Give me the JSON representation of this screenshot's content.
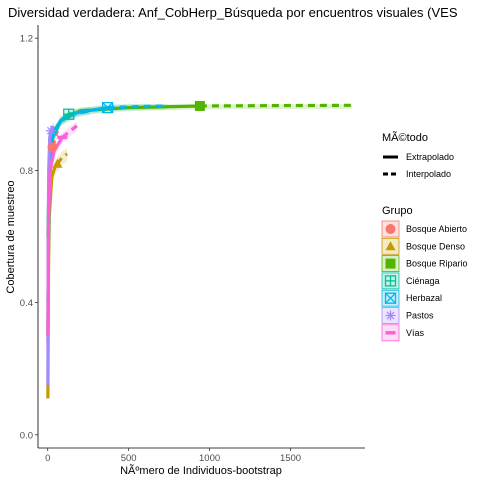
{
  "chart_data": {
    "type": "line",
    "title": "Diversidad verdadera: Anf_CobHerp_Búsqueda por encuentros visuales (VES",
    "xlabel": "NÃºmero de Individuos-bootstrap",
    "ylabel": "Cobertura de muestreo",
    "xlim": [
      -60,
      1960
    ],
    "ylim": [
      -0.04,
      1.24
    ],
    "x_ticks": [
      0,
      500,
      1000,
      1500
    ],
    "y_ticks": [
      0.0,
      0.4,
      0.8,
      1.2
    ],
    "y_tick_labels": [
      "0.0",
      "0.4",
      "0.8",
      "1.2"
    ],
    "grid": false,
    "legend_position": "right",
    "method_legend": {
      "title": "MÃ©todo",
      "items": [
        {
          "label": "Extrapolado",
          "style": "solid"
        },
        {
          "label": "Interpolado",
          "style": "dashed"
        }
      ]
    },
    "group_legend": {
      "title": "Grupo",
      "items": [
        {
          "label": "Bosque Abierto",
          "color": "#F8766D",
          "shape": "circle"
        },
        {
          "label": "Bosque Denso",
          "color": "#C49A00",
          "shape": "triangle"
        },
        {
          "label": "Bosque Ripario",
          "color": "#53B400",
          "shape": "square"
        },
        {
          "label": "Ciénaga",
          "color": "#00C094",
          "shape": "cross-square"
        },
        {
          "label": "Herbazal",
          "color": "#00B6EB",
          "shape": "x-square"
        },
        {
          "label": "Pastos",
          "color": "#A58AFF",
          "shape": "asterisk"
        },
        {
          "label": "Vías",
          "color": "#FB61D7",
          "shape": "bar"
        }
      ]
    },
    "series": [
      {
        "group": "Bosque Abierto",
        "color": "#F8766D",
        "interpolated": [
          [
            1,
            0.28
          ],
          [
            5,
            0.62
          ],
          [
            10,
            0.74
          ],
          [
            20,
            0.83
          ],
          [
            30,
            0.87
          ]
        ],
        "extrapolated": [
          [
            30,
            0.87
          ],
          [
            60,
            0.92
          ]
        ],
        "observed": [
          30,
          0.87
        ]
      },
      {
        "group": "Bosque Denso",
        "color": "#C49A00",
        "interpolated": [
          [
            1,
            0.11
          ],
          [
            5,
            0.5
          ],
          [
            10,
            0.66
          ],
          [
            25,
            0.78
          ],
          [
            45,
            0.81
          ],
          [
            60,
            0.82
          ]
        ],
        "extrapolated": [
          [
            60,
            0.82
          ],
          [
            90,
            0.84
          ],
          [
            120,
            0.85
          ]
        ],
        "observed": [
          60,
          0.82
        ]
      },
      {
        "group": "Bosque Ripario",
        "color": "#53B400",
        "interpolated": [
          [
            1,
            0.6
          ],
          [
            10,
            0.8
          ],
          [
            30,
            0.9
          ],
          [
            80,
            0.95
          ],
          [
            200,
            0.98
          ],
          [
            500,
            0.99
          ],
          [
            940,
            0.995
          ]
        ],
        "extrapolated": [
          [
            940,
            0.995
          ],
          [
            1400,
            0.996
          ],
          [
            1880,
            0.997
          ]
        ],
        "observed": [
          940,
          0.995
        ]
      },
      {
        "group": "Ciénaga",
        "color": "#00C094",
        "interpolated": [
          [
            1,
            0.3
          ],
          [
            5,
            0.7
          ],
          [
            15,
            0.85
          ],
          [
            40,
            0.92
          ],
          [
            80,
            0.95
          ],
          [
            130,
            0.97
          ]
        ],
        "extrapolated": [
          [
            130,
            0.97
          ],
          [
            200,
            0.975
          ],
          [
            260,
            0.98
          ]
        ],
        "observed": [
          130,
          0.97
        ]
      },
      {
        "group": "Herbazal",
        "color": "#00B6EB",
        "interpolated": [
          [
            1,
            0.4
          ],
          [
            10,
            0.8
          ],
          [
            30,
            0.9
          ],
          [
            80,
            0.95
          ],
          [
            180,
            0.975
          ],
          [
            370,
            0.99
          ]
        ],
        "extrapolated": [
          [
            370,
            0.99
          ],
          [
            560,
            0.993
          ],
          [
            740,
            0.995
          ]
        ],
        "observed": [
          370,
          0.99
        ]
      },
      {
        "group": "Pastos",
        "color": "#A58AFF",
        "interpolated": [
          [
            1,
            0.15
          ],
          [
            3,
            0.6
          ],
          [
            6,
            0.8
          ],
          [
            12,
            0.9
          ],
          [
            20,
            0.92
          ]
        ],
        "extrapolated": [
          [
            20,
            0.92
          ],
          [
            30,
            0.93
          ],
          [
            40,
            0.93
          ]
        ],
        "observed": [
          20,
          0.92
        ]
      },
      {
        "group": "Vías",
        "color": "#FB61D7",
        "interpolated": [
          [
            1,
            0.3
          ],
          [
            5,
            0.65
          ],
          [
            15,
            0.8
          ],
          [
            40,
            0.86
          ],
          [
            90,
            0.9
          ]
        ],
        "extrapolated": [
          [
            90,
            0.9
          ],
          [
            140,
            0.92
          ],
          [
            180,
            0.935
          ]
        ],
        "observed": [
          90,
          0.9
        ]
      }
    ]
  }
}
